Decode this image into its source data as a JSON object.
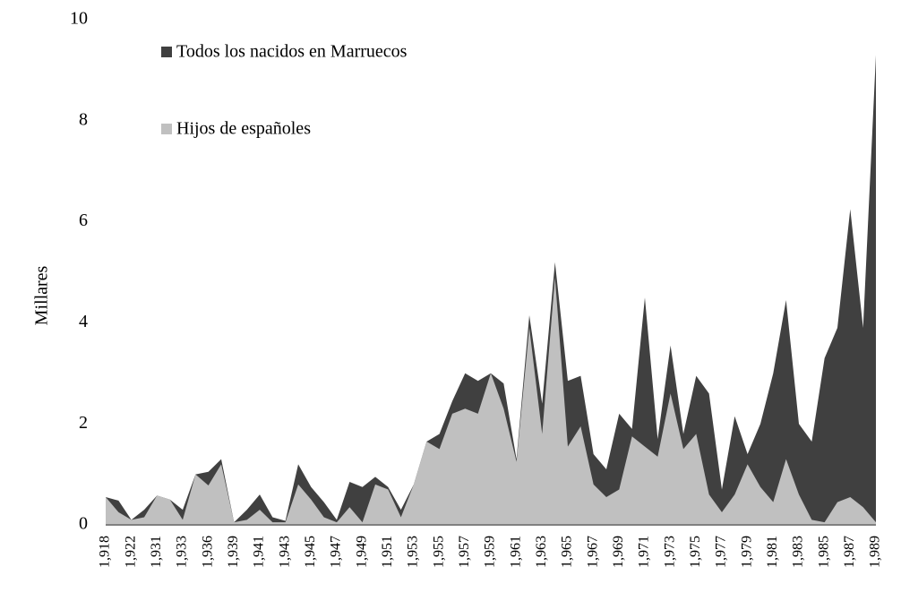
{
  "chart_data": {
    "type": "area",
    "ylabel": "Millares",
    "categories": [
      "1,918",
      null,
      "1,922",
      null,
      "1,931",
      null,
      "1,933",
      null,
      "1,936",
      null,
      "1,939",
      null,
      "1,941",
      null,
      "1,943",
      null,
      "1,945",
      null,
      "1,947",
      null,
      "1,949",
      null,
      "1,951",
      null,
      "1,953",
      null,
      "1,955",
      null,
      "1,957",
      null,
      "1,959",
      null,
      "1,961",
      null,
      "1,963",
      null,
      "1,965",
      null,
      "1,967",
      null,
      "1,969",
      null,
      "1,971",
      null,
      "1,973",
      null,
      "1,975",
      null,
      "1,977",
      null,
      "1,979",
      null,
      "1,981",
      null,
      "1,983",
      null,
      "1,985",
      null,
      "1,987",
      null,
      "1,989"
    ],
    "series": [
      {
        "name": "Todos los nacidos en Marruecos",
        "color": "#404040",
        "values": [
          0.55,
          0.48,
          0.1,
          0.3,
          0.58,
          0.5,
          0.3,
          1.0,
          1.05,
          1.3,
          0.05,
          0.3,
          0.6,
          0.15,
          0.08,
          1.2,
          0.75,
          0.45,
          0.1,
          0.85,
          0.75,
          0.95,
          0.75,
          0.3,
          0.8,
          1.65,
          1.8,
          2.45,
          3.0,
          2.85,
          3.0,
          2.8,
          1.3,
          4.15,
          2.4,
          5.2,
          2.85,
          2.95,
          1.4,
          1.1,
          2.2,
          1.9,
          4.5,
          1.7,
          3.55,
          1.8,
          2.95,
          2.6,
          0.7,
          2.15,
          1.4,
          2.0,
          3.0,
          4.45,
          2.0,
          1.65,
          3.3,
          3.9,
          6.25,
          3.9,
          9.3
        ]
      },
      {
        "name": "Hijos de españoles",
        "color": "#c0c0c0",
        "values": [
          0.55,
          0.25,
          0.1,
          0.15,
          0.58,
          0.5,
          0.1,
          1.0,
          0.78,
          1.2,
          0.05,
          0.1,
          0.3,
          0.05,
          0.05,
          0.8,
          0.5,
          0.15,
          0.05,
          0.35,
          0.05,
          0.8,
          0.7,
          0.15,
          0.8,
          1.65,
          1.5,
          2.2,
          2.3,
          2.2,
          3.0,
          2.3,
          1.25,
          3.9,
          1.8,
          4.9,
          1.55,
          1.95,
          0.8,
          0.55,
          0.7,
          1.75,
          1.55,
          1.35,
          2.6,
          1.5,
          1.8,
          0.6,
          0.25,
          0.6,
          1.2,
          0.75,
          0.45,
          1.3,
          0.6,
          0.1,
          0.05,
          0.45,
          0.55,
          0.35,
          0.05
        ]
      }
    ],
    "ylim": [
      0,
      10
    ],
    "yticks": [
      0,
      2,
      4,
      6,
      8,
      10
    ],
    "legend": "upper left",
    "grid": false
  }
}
